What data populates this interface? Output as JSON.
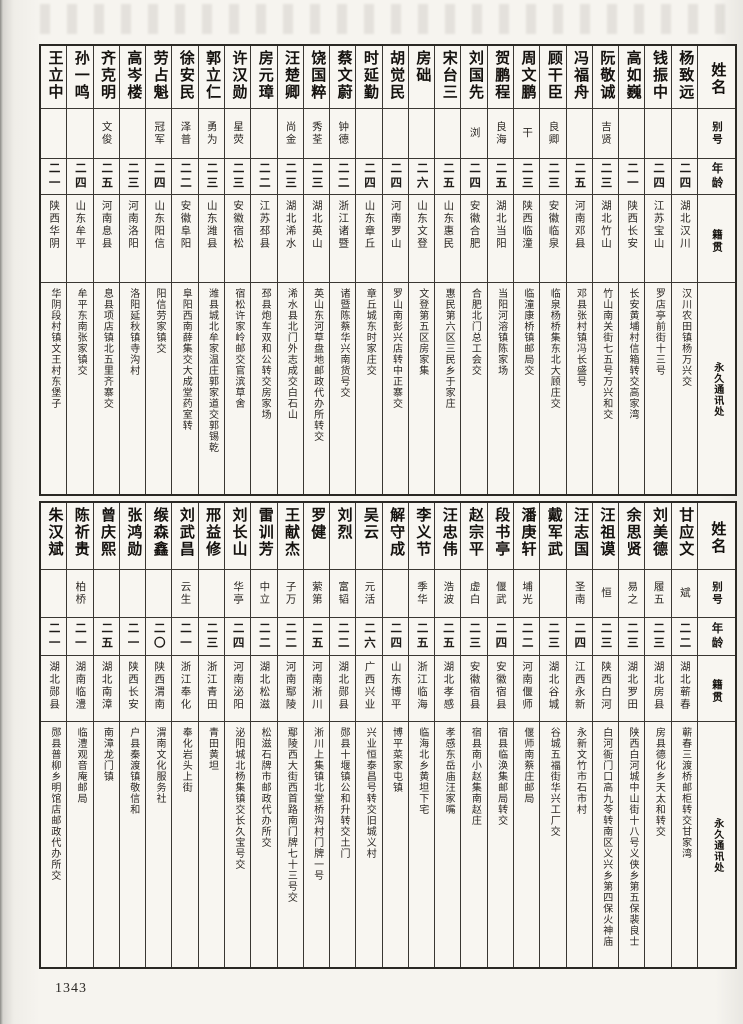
{
  "page": {
    "number": "1343"
  },
  "headers": {
    "name": "姓名",
    "alias": "别号",
    "age": "年龄",
    "native": "籍贯",
    "address": "永久通讯处"
  },
  "tables": [
    {
      "persons": [
        {
          "name": "杨致远",
          "alias": "",
          "age": "二四",
          "native": "湖北汉川",
          "address": "汉川农田镇杨万兴交"
        },
        {
          "name": "钱振中",
          "alias": "",
          "age": "二四",
          "native": "江苏宝山",
          "address": "罗店亭前街十三号"
        },
        {
          "name": "高如巍",
          "alias": "",
          "age": "二一",
          "native": "陕西长安",
          "address": "长安黄埔村信箱转交高家湾"
        },
        {
          "name": "阮敬诚",
          "alias": "吉贤",
          "age": "二三",
          "native": "湖北竹山",
          "address": "竹山南关街七五号万兴和交"
        },
        {
          "name": "冯福舟",
          "alias": "",
          "age": "二五",
          "native": "河南邓县",
          "address": "邓县张村镇冯长盛号"
        },
        {
          "name": "顾干臣",
          "alias": "良卿",
          "age": "二三",
          "native": "安徽临泉",
          "address": "临泉杨桥集东北大顾庄交"
        },
        {
          "name": "周文鹏",
          "alias": "干",
          "age": "二三",
          "native": "陕西临潼",
          "address": "临潼康桥镇邮局交"
        },
        {
          "name": "贺鹏程",
          "alias": "良海",
          "age": "二五",
          "native": "湖北当阳",
          "address": "当阳河溶镇陈家场"
        },
        {
          "name": "刘国先",
          "alias": "浏",
          "age": "二四",
          "native": "安徽合肥",
          "address": "合肥北门总工会交"
        },
        {
          "name": "宋台三",
          "alias": "",
          "age": "二五",
          "native": "山东惠民",
          "address": "惠民第六区三民乡于家庄"
        },
        {
          "name": "房础",
          "alias": "",
          "age": "二六",
          "native": "山东文登",
          "address": "文登第五区房家集"
        },
        {
          "name": "胡觉民",
          "alias": "",
          "age": "二四",
          "native": "河南罗山",
          "address": "罗山南彭兴店转中正寨交"
        },
        {
          "name": "时延勤",
          "alias": "",
          "age": "二四",
          "native": "山东章丘",
          "address": "章丘城东时家庄交"
        },
        {
          "name": "蔡文蔚",
          "alias": "钟德",
          "age": "二二",
          "native": "浙江诸暨",
          "address": "诸暨陈蔡华兴南货号交"
        },
        {
          "name": "饶国粹",
          "alias": "秀荃",
          "age": "二三",
          "native": "湖北英山",
          "address": "英山东河草盘地邮政代办所转交"
        },
        {
          "name": "汪楚卿",
          "alias": "尚金",
          "age": "二三",
          "native": "湖北浠水",
          "address": "浠水县北门外志成交白石山"
        },
        {
          "name": "房元璋",
          "alias": "",
          "age": "二二",
          "native": "江苏邳县",
          "address": "邳县炮车双和公转交房家场"
        },
        {
          "name": "许汉勋",
          "alias": "星荧",
          "age": "二三",
          "native": "安徽宿松",
          "address": "宿松许家岭邮交官滨草舍"
        },
        {
          "name": "郭立仁",
          "alias": "勇为",
          "age": "二三",
          "native": "山东潍县",
          "address": "潍县城北牟家温庄郭家道交郭锡乾"
        },
        {
          "name": "徐安民",
          "alias": "泽普",
          "age": "二二",
          "native": "安徽阜阳",
          "address": "阜阳西南薛集交大成堂药室转"
        },
        {
          "name": "劳占魁",
          "alias": "冠军",
          "age": "二四",
          "native": "山东阳信",
          "address": "阳信劳家镇交"
        },
        {
          "name": "高岑楼",
          "alias": "",
          "age": "二三",
          "native": "河南洛阳",
          "address": "洛阳延秋镇寺沟村"
        },
        {
          "name": "齐克明",
          "alias": "文俊",
          "age": "二五",
          "native": "河南息县",
          "address": "息县项店镇北五里齐寨交"
        },
        {
          "name": "孙一鸣",
          "alias": "",
          "age": "二四",
          "native": "山东牟平",
          "address": "牟平东南张家镇交"
        },
        {
          "name": "王立中",
          "alias": "",
          "age": "二一",
          "native": "陕西华阴",
          "address": "华阴段村镇文王村东堡子"
        }
      ]
    },
    {
      "persons": [
        {
          "name": "甘应文",
          "alias": "斌",
          "age": "二二",
          "native": "湖北蕲春",
          "address": "蕲春三渡桥邮柜转交甘家湾"
        },
        {
          "name": "刘美德",
          "alias": "履五",
          "age": "二三",
          "native": "湖北房县",
          "address": "房县德化乡天太和转交"
        },
        {
          "name": "余思贤",
          "alias": "易之",
          "age": "二三",
          "native": "湖北罗田",
          "address": "陕西白河城中山街十八号义侠乡第五保裴良士"
        },
        {
          "name": "汪祖谟",
          "alias": "恒",
          "age": "二三",
          "native": "陕西白河",
          "address": "白河衙门口高九苓转南区义兴乡第四保火神庙"
        },
        {
          "name": "汪志国",
          "alias": "圣南",
          "age": "二四",
          "native": "江西永新",
          "address": "永新文竹市石市村"
        },
        {
          "name": "戴军武",
          "alias": "",
          "age": "二三",
          "native": "湖北谷城",
          "address": "谷城五福街华兴工厂交"
        },
        {
          "name": "潘庚轩",
          "alias": "埔光",
          "age": "二二",
          "native": "河南偃师",
          "address": "偃师南蔡庄邮局"
        },
        {
          "name": "段书亭",
          "alias": "偃武",
          "age": "二四",
          "native": "安徽宿县",
          "address": "宿县临涣集邮局转交"
        },
        {
          "name": "赵宗平",
          "alias": "虚白",
          "age": "二三",
          "native": "安徽宿县",
          "address": "宿县南小赵集南赵庄"
        },
        {
          "name": "汪忠伟",
          "alias": "浩波",
          "age": "二五",
          "native": "湖北孝感",
          "address": "孝感东岳庙汪家嘴"
        },
        {
          "name": "李义节",
          "alias": "季华",
          "age": "二五",
          "native": "浙江临海",
          "address": "临海北乡黄坦下宅"
        },
        {
          "name": "解守成",
          "alias": "",
          "age": "二四",
          "native": "山东博平",
          "address": "博平菜家屯镇"
        },
        {
          "name": "吴云",
          "alias": "元活",
          "age": "二六",
          "native": "广西兴业",
          "address": "兴业恒泰昌号转交旧城义村"
        },
        {
          "name": "刘烈",
          "alias": "富韬",
          "age": "二二",
          "native": "湖北郧县",
          "address": "郧县十堰镇公和升转交土门"
        },
        {
          "name": "罗健",
          "alias": "萦第",
          "age": "二五",
          "native": "河南淅川",
          "address": "淅川上集镇北堂桥沟村门牌一号"
        },
        {
          "name": "王献杰",
          "alias": "子万",
          "age": "二二",
          "native": "河南鄢陵",
          "address": "鄢陵西大街西首路南门牌七十三号交"
        },
        {
          "name": "雷训芳",
          "alias": "中立",
          "age": "二二",
          "native": "湖北松滋",
          "address": "松滋石牌市邮政代办所交"
        },
        {
          "name": "刘长山",
          "alias": "华亭",
          "age": "二四",
          "native": "河南泌阳",
          "address": "泌阳城北杨集镇交长久宝号交"
        },
        {
          "name": "邢益修",
          "alias": "",
          "age": "二三",
          "native": "浙江青田",
          "address": "青田黄坦"
        },
        {
          "name": "刘武昌",
          "alias": "云生",
          "age": "二一",
          "native": "浙江奉化",
          "address": "奉化岩头上街"
        },
        {
          "name": "缑森鑫",
          "alias": "",
          "age": "二〇",
          "native": "陕西渭南",
          "address": "渭南文化服务社"
        },
        {
          "name": "张鸿勋",
          "alias": "",
          "age": "二一",
          "native": "陕西长安",
          "address": "户县秦渡镇敬信和"
        },
        {
          "name": "曾庆熙",
          "alias": "",
          "age": "二五",
          "native": "湖北南漳",
          "address": "南漳龙门镇"
        },
        {
          "name": "陈祈贵",
          "alias": "柏桥",
          "age": "二一",
          "native": "湖南临澧",
          "address": "临澧观音庵邮局"
        },
        {
          "name": "朱汉斌",
          "alias": "",
          "age": "二一",
          "native": "湖北郧县",
          "address": "郧县普柳乡明馆店邮政代办所交"
        }
      ]
    }
  ]
}
